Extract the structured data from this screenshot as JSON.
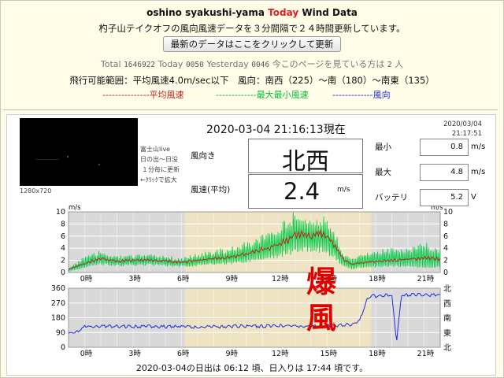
{
  "header": {
    "title_prefix": "oshino syakushi-yama",
    "title_today": "Today",
    "title_suffix": "Wind Data",
    "description": "杓子山テイクオフの風向風速データを３分間隔で２４時間更新しています。",
    "refresh_button": "最新のデータはここをクリックして更新"
  },
  "counter": {
    "total_label": "Total",
    "total": "1646922",
    "today_label": "Today",
    "today": "0050",
    "yesterday_label": "Yesterday",
    "yesterday": "0046",
    "viewers_text": "今このページを見ている方は",
    "viewers": "2",
    "viewers_unit": "人"
  },
  "flight_info": "飛行可能範囲：平均風速4.0m/sec以下　風向：南西（225）～南（180）～南東（135）",
  "legend": {
    "avg": "---------------平均風速",
    "maxmin": "-------------最大最小風速",
    "dir": "-------------風向"
  },
  "camera": {
    "caption_lines": [
      "富士山live",
      "日の出～日没",
      "１分毎に更新",
      "←ｸﾘｯｸで拡大"
    ],
    "resolution": "1280x720"
  },
  "current": {
    "datetime": "2020-03-04 21:16:13現在",
    "stamp_date": "2020/03/04",
    "stamp_time": "21:17:51",
    "dir_label": "風向き",
    "dir_value": "北西",
    "speed_label": "風速(平均)",
    "speed_value": "2.4",
    "speed_unit": "m/s"
  },
  "stats": {
    "min_label": "最小",
    "min_value": "0.8",
    "min_unit": "m/s",
    "max_label": "最大",
    "max_value": "4.8",
    "max_unit": "m/s",
    "battery_label": "バッテリ",
    "battery_value": "5.2",
    "battery_unit": "V"
  },
  "annotation": "爆風",
  "sun_info": "2020-03-04の日出は 06:12 頃、日入りは 17:44 頃です。",
  "colors": {
    "avg": "#c02020",
    "maxmin": "#00cc44",
    "dir": "#1a2be0",
    "night": "#d9d9d9",
    "day": "#eee4c4",
    "accent": "#e02020"
  },
  "chart_data": [
    {
      "type": "line",
      "title": "",
      "xlabel": "",
      "ylabel": "m/s",
      "x_ticks": [
        "0時",
        "3時",
        "6時",
        "9時",
        "12時",
        "15時",
        "18時",
        "21時"
      ],
      "y_ticks": [
        0,
        2,
        4,
        6,
        8,
        10
      ],
      "xlim": [
        -1,
        22
      ],
      "ylim": [
        0,
        10
      ],
      "series": [
        {
          "name": "平均風速",
          "x": [
            -1,
            0,
            1,
            2,
            3,
            4,
            5,
            6,
            7,
            8,
            9,
            10,
            11,
            12,
            12.5,
            13,
            13.5,
            14,
            14.5,
            15,
            15.5,
            16,
            16.5,
            17,
            18,
            19,
            20,
            21,
            22
          ],
          "values": [
            0.5,
            1.5,
            2.3,
            1.9,
            2.0,
            2.0,
            1.9,
            1.7,
            2.0,
            2.3,
            2.6,
            3.0,
            3.8,
            4.6,
            5.4,
            6.0,
            6.4,
            6.0,
            6.4,
            5.8,
            4.5,
            2.2,
            1.3,
            1.6,
            1.8,
            2.0,
            2.2,
            2.4,
            2.2
          ]
        },
        {
          "name": "最大風速",
          "x": [
            -1,
            0,
            1,
            2,
            3,
            4,
            5,
            6,
            7,
            8,
            9,
            10,
            11,
            12,
            12.5,
            13,
            13.5,
            14,
            14.5,
            15,
            15.5,
            16,
            16.5,
            17,
            18,
            19,
            20,
            21,
            22
          ],
          "values": [
            0.8,
            2.5,
            3.4,
            2.7,
            2.8,
            2.8,
            2.6,
            2.4,
            3.0,
            3.6,
            3.9,
            4.8,
            6.0,
            7.2,
            8.5,
            9.6,
            8.8,
            9.0,
            9.4,
            8.4,
            6.5,
            3.0,
            2.2,
            3.0,
            3.6,
            3.8,
            3.8,
            4.8,
            3.6
          ]
        },
        {
          "name": "最小風速",
          "x": [
            -1,
            0,
            1,
            2,
            3,
            4,
            5,
            6,
            7,
            8,
            9,
            10,
            11,
            12,
            12.5,
            13,
            13.5,
            14,
            14.5,
            15,
            15.5,
            16,
            16.5,
            17,
            18,
            19,
            20,
            21,
            22
          ],
          "values": [
            0.2,
            0.8,
            1.4,
            1.2,
            1.2,
            1.3,
            1.1,
            1.0,
            1.2,
            1.4,
            1.5,
            1.8,
            2.2,
            2.8,
            3.2,
            3.6,
            3.8,
            3.6,
            3.8,
            3.4,
            2.4,
            1.0,
            0.6,
            0.8,
            0.9,
            1.0,
            1.0,
            0.8,
            1.0
          ]
        }
      ]
    },
    {
      "type": "line",
      "title": "",
      "xlabel": "",
      "ylabel": "",
      "x_ticks": [
        "0時",
        "3時",
        "6時",
        "9時",
        "12時",
        "15時",
        "18時",
        "21時"
      ],
      "y_ticks": [
        0,
        90,
        180,
        270,
        360
      ],
      "y_tick_labels_right": [
        "北",
        "東",
        "南",
        "西",
        "北"
      ],
      "xlim": [
        -1,
        22
      ],
      "ylim": [
        0,
        360
      ],
      "series": [
        {
          "name": "風向",
          "x": [
            -1,
            -0.5,
            0,
            1,
            2,
            3,
            4,
            5,
            6,
            7,
            8,
            9,
            10,
            11,
            12,
            13,
            14,
            15,
            16,
            16.5,
            17,
            17.5,
            17.8,
            18,
            18.5,
            19,
            19.3,
            19.6,
            20,
            21,
            22
          ],
          "values": [
            85,
            95,
            125,
            130,
            128,
            125,
            127,
            125,
            128,
            122,
            125,
            127,
            130,
            128,
            132,
            130,
            128,
            132,
            135,
            140,
            160,
            300,
            320,
            310,
            315,
            320,
            30,
            320,
            318,
            320,
            318
          ]
        }
      ]
    }
  ]
}
